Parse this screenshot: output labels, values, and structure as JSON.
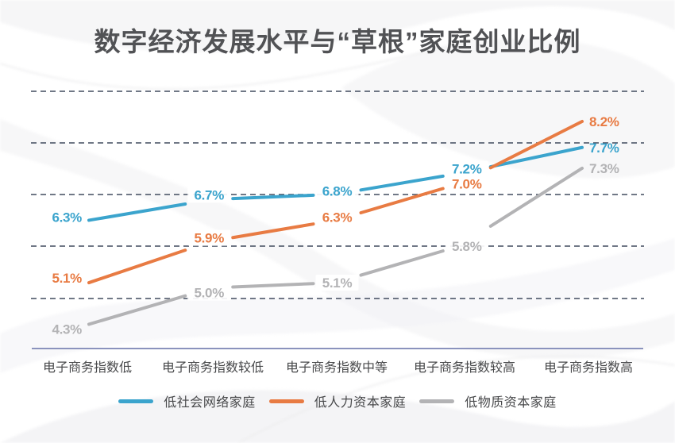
{
  "chart_data": {
    "type": "line",
    "title": "数字经济发展水平与“草根”家庭创业比例",
    "categories": [
      "电子商务指数低",
      "电子商务指数较低",
      "电子商务指数中等",
      "电子商务指数较高",
      "电子商务指数高"
    ],
    "series": [
      {
        "name": "低社会网络家庭",
        "color": "#3ba4cd",
        "values": [
          6.3,
          6.7,
          6.8,
          7.2,
          7.7
        ],
        "labels": [
          "6.3%",
          "6.7%",
          "6.8%",
          "7.2%",
          "7.7%"
        ]
      },
      {
        "name": "低人力资本家庭",
        "color": "#e87b43",
        "values": [
          5.1,
          5.9,
          6.3,
          7.0,
          8.2
        ],
        "labels": [
          "5.1%",
          "5.9%",
          "6.3%",
          "7.0%",
          "8.2%"
        ]
      },
      {
        "name": "低物质资本家庭",
        "color": "#b3b3b5",
        "values": [
          4.3,
          5.0,
          5.1,
          5.8,
          7.3
        ],
        "labels": [
          "4.3%",
          "5.0%",
          "5.1%",
          "5.8%",
          "7.3%"
        ]
      }
    ],
    "ylim": [
      3.8,
      9.0
    ],
    "grid": "horizontal-dashed",
    "legend_position": "bottom"
  },
  "styles": {
    "background": "#ffffff",
    "title_color": "#515255",
    "grid_color": "#414b5e",
    "axis_color": "#8b93bd",
    "text_color": "#48494b",
    "wave_color": "#f1f1f3"
  }
}
